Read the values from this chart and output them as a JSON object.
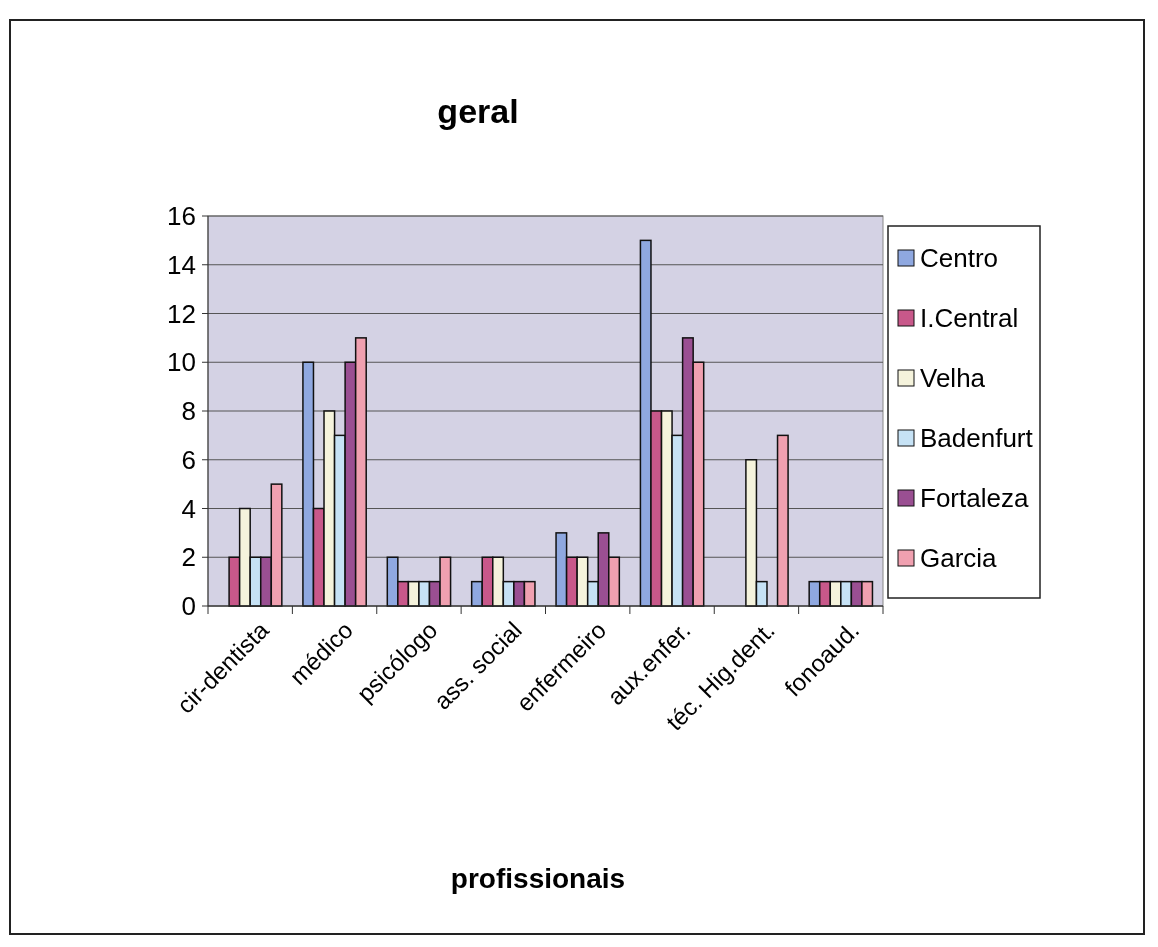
{
  "chart_data": {
    "type": "bar",
    "title": "geral",
    "xlabel": "profissionais",
    "categories": [
      "cir-dentista",
      "médico",
      "psicólogo",
      "ass. social",
      "enfermeiro",
      "aux.enfer.",
      "téc. Hig.dent.",
      "fonoaud."
    ],
    "series": [
      {
        "name": "Centro",
        "color": "#8fa8e0",
        "values": [
          0,
          10,
          2,
          1,
          3,
          15,
          0,
          1
        ]
      },
      {
        "name": "I.Central",
        "color": "#c8588a",
        "values": [
          2,
          4,
          1,
          2,
          2,
          8,
          0,
          1
        ]
      },
      {
        "name": "Velha",
        "color": "#f5f3dc",
        "values": [
          4,
          8,
          1,
          2,
          2,
          8,
          6,
          1
        ]
      },
      {
        "name": "Badenfurt",
        "color": "#c6e2f5",
        "values": [
          2,
          7,
          1,
          1,
          1,
          7,
          1,
          1
        ]
      },
      {
        "name": "Fortaleza",
        "color": "#9a4f92",
        "values": [
          2,
          10,
          1,
          1,
          3,
          11,
          0,
          1
        ]
      },
      {
        "name": "Garcia",
        "color": "#f0a0b0",
        "values": [
          5,
          11,
          2,
          1,
          2,
          10,
          7,
          1
        ]
      }
    ],
    "ylim": [
      0,
      16
    ],
    "yticks": [
      0,
      2,
      4,
      6,
      8,
      10,
      12,
      14,
      16
    ],
    "grid": "y",
    "legend": "right"
  }
}
